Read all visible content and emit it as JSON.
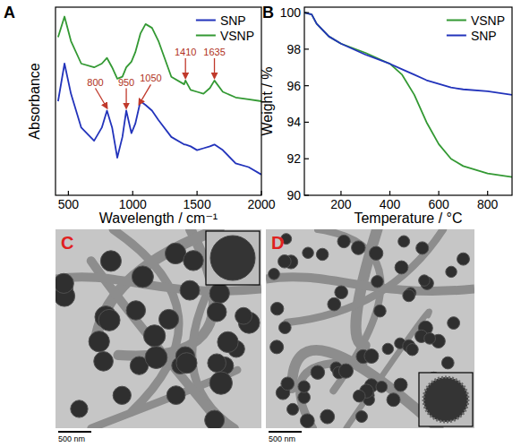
{
  "chart_data": [
    {
      "type": "line",
      "panel": "A",
      "xlabel": "Wavelength / cm⁻¹",
      "ylabel": "Absorbance",
      "x": [
        420,
        470,
        520,
        600,
        700,
        760,
        800,
        840,
        880,
        920,
        950,
        990,
        1020,
        1060,
        1100,
        1150,
        1200,
        1300,
        1400,
        1410,
        1450,
        1500,
        1550,
        1600,
        1635,
        1700,
        1800,
        1900,
        2000
      ],
      "series": [
        {
          "name": "SNP",
          "color": "#2233bb",
          "values": [
            0.5,
            0.7,
            0.54,
            0.36,
            0.29,
            0.36,
            0.45,
            0.36,
            0.2,
            0.31,
            0.45,
            0.33,
            0.38,
            0.5,
            0.48,
            0.45,
            0.4,
            0.31,
            0.27,
            0.27,
            0.26,
            0.24,
            0.25,
            0.26,
            0.27,
            0.24,
            0.17,
            0.15,
            0.11
          ]
        },
        {
          "name": "VSNP",
          "color": "#339933",
          "values": [
            0.84,
            0.95,
            0.82,
            0.7,
            0.68,
            0.7,
            0.73,
            0.68,
            0.62,
            0.63,
            0.68,
            0.71,
            0.76,
            0.86,
            0.91,
            0.89,
            0.82,
            0.63,
            0.59,
            0.61,
            0.56,
            0.55,
            0.54,
            0.57,
            0.61,
            0.55,
            0.52,
            0.51,
            0.5
          ]
        }
      ],
      "xlim": [
        400,
        2000
      ],
      "ylim": [
        0,
        1
      ],
      "xticks": [
        500,
        1000,
        1500,
        2000
      ],
      "tick_labels": "x",
      "grid": false,
      "legend": "top-right",
      "annotations": [
        {
          "text": "800",
          "x": 800,
          "series": "SNP"
        },
        {
          "text": "950",
          "x": 950,
          "series": "SNP"
        },
        {
          "text": "1050",
          "x": 1050,
          "series": "SNP"
        },
        {
          "text": "1410",
          "x": 1410,
          "series": "VSNP"
        },
        {
          "text": "1635",
          "x": 1635,
          "series": "VSNP"
        }
      ]
    },
    {
      "type": "line",
      "panel": "B",
      "xlabel": "Temperature / °C",
      "ylabel": "Weight / %",
      "x": [
        50,
        80,
        100,
        150,
        200,
        300,
        400,
        450,
        500,
        550,
        600,
        650,
        700,
        800,
        900
      ],
      "series": [
        {
          "name": "VSNP",
          "color": "#339933",
          "values": [
            100,
            99.9,
            99.4,
            98.7,
            98.3,
            97.8,
            97.2,
            96.6,
            95.5,
            94.0,
            92.8,
            92.0,
            91.6,
            91.2,
            91.0
          ]
        },
        {
          "name": "SNP",
          "color": "#2233bb",
          "values": [
            100,
            99.9,
            99.4,
            98.7,
            98.3,
            97.7,
            97.2,
            96.9,
            96.6,
            96.3,
            96.1,
            95.9,
            95.8,
            95.7,
            95.5
          ]
        }
      ],
      "xlim": [
        50,
        900
      ],
      "ylim": [
        90,
        100.3
      ],
      "xticks": [
        200,
        400,
        600,
        800
      ],
      "yticks": [
        90,
        92,
        94,
        96,
        98,
        100
      ],
      "grid": false,
      "legend": "top-right"
    }
  ],
  "images": [
    {
      "label": "C",
      "scale_bar": "500 nm"
    },
    {
      "label": "D",
      "scale_bar": "500 nm"
    }
  ]
}
